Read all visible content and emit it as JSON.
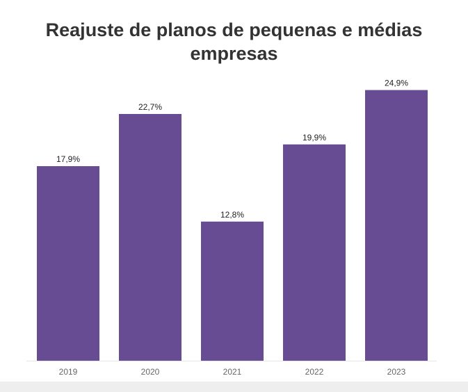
{
  "chart_data": {
    "type": "bar",
    "title": "Reajuste de planos de pequenas e médias empresas",
    "categories": [
      "2019",
      "2020",
      "2021",
      "2022",
      "2023"
    ],
    "values": [
      17.9,
      22.7,
      12.8,
      19.9,
      24.9
    ],
    "data_labels": [
      "17,9%",
      "22,7%",
      "12,8%",
      "19,9%",
      "24,9%"
    ],
    "xlabel": "",
    "ylabel": "",
    "ylim": [
      0,
      25
    ],
    "grid": false,
    "bar_color": "#674b93"
  }
}
